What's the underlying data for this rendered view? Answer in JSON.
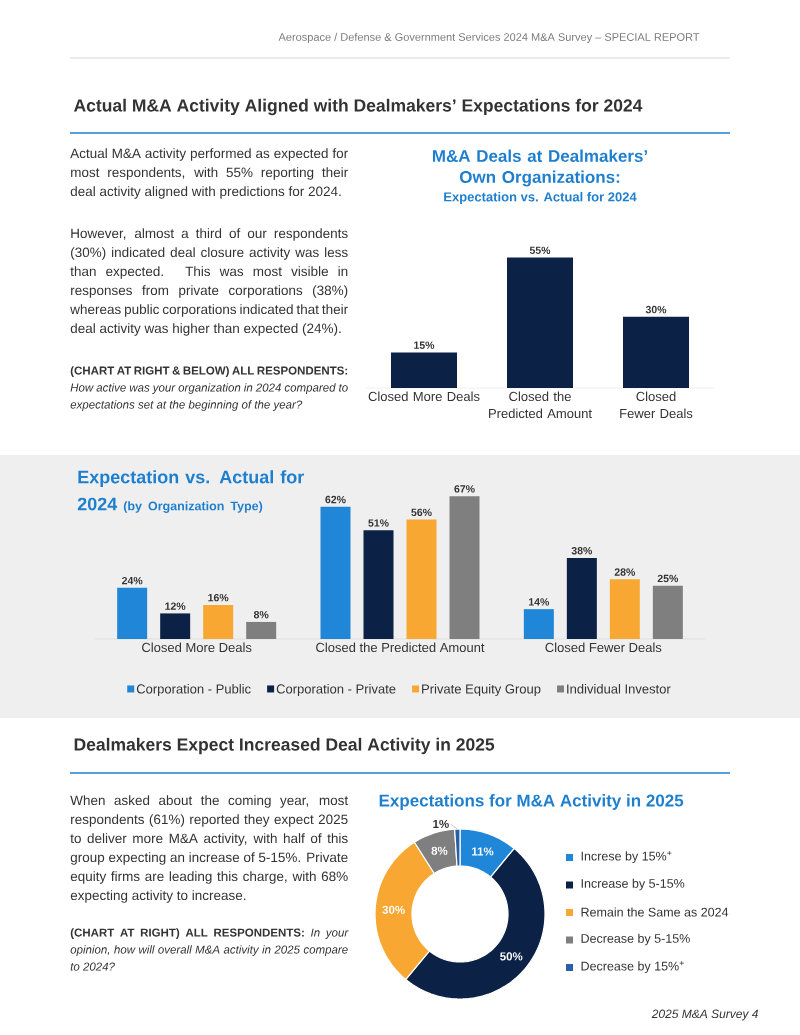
{
  "chart_data": [
    {
      "type": "other",
      "title": "Actual M&A Activity Aligned with Dealmakers’ Expectations for 2024",
      "annotations": [
        "Aerospace / Defense & Government Services 2024 M&A Survey – SPECIAL REPORT",
        "Actual M&A activity performed as expected for most respondents, with 55% reporting their deal activity aligned with predictions for 2024.",
        "However, almost a third of our respondents (30%) indicated deal closure activity was less than expected. This was most visible in responses from private corporations (38%) whereas public corporations indicated that their deal activity was higher than expected (24%).",
        "**(CHART AT RIGHT & BELOW) ALL RESPONDENTS:** *How active was your organization in 2024 compared to expectations set at the beginning of the year?*"
      ]
    },
    {
      "type": "bar",
      "title": "M&A Deals at Dealmakers’ Own Organizations:",
      "subtitle": "Expectation vs. Actual for 2024",
      "categories": [
        "Closed More Deals",
        "Closed the Predicted Amount",
        "Closed Fewer Deals"
      ],
      "values": [
        15,
        55,
        30
      ],
      "value_labels": [
        "15%",
        "55%",
        "30%"
      ],
      "color": "#0c2146"
    },
    {
      "type": "bar",
      "title": "Expectation vs. Actual for 2024",
      "subtitle": "(by Organization Type)",
      "categories": [
        "Closed More Deals",
        "Closed the Predicted Amount",
        "Closed Fewer Deals"
      ],
      "series": [
        {
          "name": "Corporation - Public",
          "color": "#1f86d8",
          "values": [
            24,
            62,
            14
          ],
          "value_labels": [
            "24%",
            "62%",
            "14%"
          ]
        },
        {
          "name": "Corporation - Private",
          "color": "#0c2146",
          "values": [
            12,
            51,
            38
          ],
          "value_labels": [
            "12%",
            "51%",
            "38%"
          ]
        },
        {
          "name": "Private Equity Group",
          "color": "#f8a832",
          "values": [
            16,
            56,
            28
          ],
          "value_labels": [
            "16%",
            "56%",
            "28%"
          ]
        },
        {
          "name": "Individual Investor",
          "color": "#7f7f7f",
          "values": [
            8,
            67,
            25
          ],
          "value_labels": [
            "8%",
            "67%",
            "25%"
          ]
        }
      ],
      "legend": "bottom"
    },
    {
      "type": "other",
      "title": "Dealmakers Expect Increased Deal Activity in 2025",
      "annotations": [
        "When asked about the coming year, most respondents (61%) reported they expect 2025 to deliver more M&A activity, with half of this group expecting an increase of 5-15%. Private equity firms are leading this charge, with 68% expecting activity to increase.",
        "**(CHART AT RIGHT) ALL RESPONDENTS:** *In your opinion, how will overall M&A activity in 2025 compare to 2024?*",
        "2025 M&A Survey 4"
      ]
    },
    {
      "type": "donut",
      "title": "Expectations for M&A Activity in 2025",
      "categories": [
        "Increse by 15%$^{+}$",
        "Increase by 5-15%",
        "Remain the Same as 2024",
        "Decrease by 5-15%",
        "Decrease by 15%$^{+}$"
      ],
      "values": [
        11,
        50,
        30,
        8,
        1
      ],
      "value_labels": [
        "11%",
        "50%",
        "30%",
        "8%",
        "1%"
      ],
      "colors": [
        "#1f86d8",
        "#0c2146",
        "#f8a832",
        "#7f7f7f",
        "#2a5fa8"
      ],
      "legend": "right"
    }
  ]
}
